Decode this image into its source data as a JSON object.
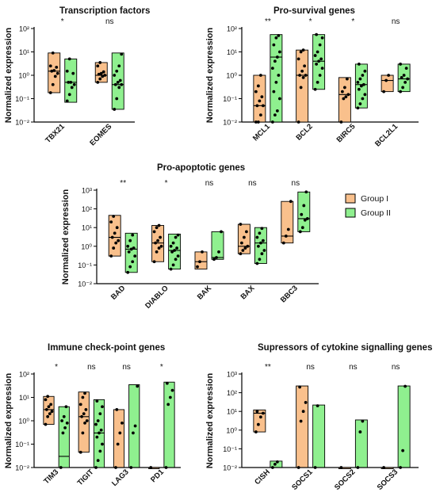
{
  "colors": {
    "group1": "#f9c08c",
    "group2": "#8ff08f",
    "stroke": "#000000",
    "background": "#ffffff"
  },
  "legend": {
    "items": [
      "Group I",
      "Group II"
    ],
    "placement": "right of Pro-apoptotic genes panel"
  },
  "chart_data": [
    {
      "type": "box",
      "title": "Transcription factors",
      "ylabel": "Normalized expression",
      "yscale": "log",
      "ylim": [
        0.01,
        100
      ],
      "categories": [
        "TBX21",
        "EOMES"
      ],
      "significance": [
        "*",
        "ns"
      ],
      "series": [
        {
          "name": "Group I",
          "values": [
            {
              "min": 0.18,
              "max": 9,
              "median": 1.5,
              "points": [
                0.18,
                0.4,
                0.9,
                1.2,
                1.5,
                1.6,
                2.2,
                2.5,
                9
              ]
            },
            {
              "min": 0.5,
              "max": 3.5,
              "median": 1.0,
              "points": [
                0.5,
                0.7,
                0.9,
                1.0,
                1.1,
                1.2,
                1.4,
                2.5,
                3.5
              ]
            }
          ]
        },
        {
          "name": "Group II",
          "values": [
            {
              "min": 0.07,
              "max": 5,
              "median": 0.5,
              "points": [
                0.08,
                0.15,
                0.3,
                0.4,
                0.5,
                0.5,
                1.2,
                1.5,
                5
              ]
            },
            {
              "min": 0.035,
              "max": 9,
              "median": 0.4,
              "points": [
                0.035,
                0.1,
                0.3,
                0.4,
                0.4,
                0.5,
                0.6,
                1.0,
                1.5,
                2.5,
                8
              ]
            }
          ]
        }
      ]
    },
    {
      "type": "box",
      "title": "Pro-survival genes",
      "ylabel": "Normalized expression",
      "yscale": "log",
      "ylim": [
        0.01,
        100
      ],
      "categories": [
        "MCL1",
        "BCL2",
        "BIRC5",
        "BCL2L1"
      ],
      "significance": [
        "**",
        "*",
        "*",
        "ns"
      ],
      "series": [
        {
          "name": "Group I",
          "values": [
            {
              "min": 0.01,
              "max": 1,
              "median": 0.05,
              "points": [
                0.01,
                0.01,
                0.02,
                0.05,
                0.05,
                0.08,
                0.12,
                0.2,
                0.35,
                1
              ]
            },
            {
              "min": 0.01,
              "max": 12,
              "median": 1,
              "points": [
                0.01,
                0.3,
                0.8,
                1,
                1,
                1.5,
                2.5,
                5,
                10,
                12
              ]
            },
            {
              "min": 0.01,
              "max": 0.8,
              "median": 0.15,
              "points": [
                0.01,
                0.1,
                0.12,
                0.15,
                0.2,
                0.3,
                0.7
              ]
            },
            {
              "min": 0.2,
              "max": 1,
              "median": 0.6,
              "points": [
                0.2,
                0.6,
                1
              ]
            }
          ]
        },
        {
          "name": "Group II",
          "values": [
            {
              "min": 0.01,
              "max": 55,
              "median": 6,
              "points": [
                0.01,
                0.02,
                0.03,
                0.1,
                0.2,
                0.5,
                1,
                2,
                4,
                6,
                10,
                20,
                40,
                50
              ]
            },
            {
              "min": 0.25,
              "max": 55,
              "median": 4,
              "points": [
                0.25,
                0.5,
                1,
                2,
                3,
                4,
                5,
                7,
                10,
                20,
                40,
                55
              ]
            },
            {
              "min": 0.04,
              "max": 3,
              "median": 0.4,
              "points": [
                0.04,
                0.06,
                0.1,
                0.15,
                0.25,
                0.35,
                0.4,
                0.5,
                0.7,
                1,
                1.5,
                3
              ]
            },
            {
              "min": 0.2,
              "max": 3,
              "median": 0.7,
              "points": [
                0.2,
                0.3,
                0.5,
                0.7,
                0.8,
                1,
                2,
                3
              ]
            }
          ]
        }
      ]
    },
    {
      "type": "box",
      "title": "Pro-apoptotic genes",
      "ylabel": "Normalized expression",
      "yscale": "log",
      "ylim": [
        0.01,
        1000
      ],
      "categories": [
        "BAD",
        "DIABLO",
        "BAK",
        "BAX",
        "BBC3"
      ],
      "significance": [
        "**",
        "*",
        "ns",
        "ns",
        "ns"
      ],
      "series": [
        {
          "name": "Group I",
          "values": [
            {
              "min": 0.3,
              "max": 45,
              "median": 3,
              "points": [
                0.3,
                0.8,
                1.5,
                2,
                3,
                5,
                10,
                20,
                40
              ]
            },
            {
              "min": 0.15,
              "max": 13,
              "median": 1.5,
              "points": [
                0.15,
                0.5,
                0.8,
                1,
                1.5,
                2,
                3,
                6,
                10,
                13
              ]
            },
            {
              "min": 0.06,
              "max": 0.5,
              "median": 0.15,
              "points": [
                0.08,
                0.15,
                0.5
              ]
            },
            {
              "min": 0.4,
              "max": 15,
              "median": 1,
              "points": [
                0.4,
                0.6,
                0.8,
                1,
                1.5,
                3,
                6,
                15
              ]
            },
            {
              "min": 1.5,
              "max": 250,
              "median": 3.5,
              "points": [
                1.5,
                3.5,
                8,
                250
              ]
            }
          ]
        },
        {
          "name": "Group II",
          "values": [
            {
              "min": 0.04,
              "max": 5,
              "median": 0.7,
              "points": [
                0.04,
                0.08,
                0.15,
                0.3,
                0.5,
                0.7,
                0.8,
                1,
                2,
                4
              ]
            },
            {
              "min": 0.06,
              "max": 4.5,
              "median": 0.6,
              "points": [
                0.06,
                0.1,
                0.2,
                0.3,
                0.5,
                0.6,
                0.8,
                1,
                1.5,
                3,
                4
              ]
            },
            {
              "min": 0.2,
              "max": 6,
              "median": 0.25,
              "points": [
                0.2,
                0.25,
                0.5,
                6
              ]
            },
            {
              "min": 0.12,
              "max": 10,
              "median": 1.5,
              "points": [
                0.12,
                0.2,
                0.4,
                0.6,
                1,
                1.5,
                2,
                3,
                5,
                9
              ]
            },
            {
              "min": 6,
              "max": 800,
              "median": 30,
              "points": [
                6,
                10,
                25,
                30,
                50,
                150,
                800
              ]
            }
          ]
        }
      ]
    },
    {
      "type": "box",
      "title": "Immune check-point genes",
      "ylabel": "Normalized expression",
      "yscale": "log",
      "ylim": [
        0.01,
        100
      ],
      "categories": [
        "TIM3",
        "TIGIT",
        "LAG3",
        "PD1"
      ],
      "significance": [
        "*",
        "ns",
        "ns",
        "*"
      ],
      "series": [
        {
          "name": "Group I",
          "values": [
            {
              "min": 0.7,
              "max": 11,
              "median": 3,
              "points": [
                0.7,
                1.5,
                2,
                2.5,
                3,
                4,
                5,
                8,
                11
              ]
            },
            {
              "min": 0.045,
              "max": 17,
              "median": 1.5,
              "points": [
                0.045,
                0.3,
                0.8,
                1,
                1.5,
                2,
                3,
                5,
                10,
                15
              ]
            },
            {
              "min": 0.01,
              "max": 3,
              "median": 0.01,
              "points": [
                0.01,
                0.1,
                0.3,
                0.8,
                3
              ]
            },
            {
              "min": 0.01,
              "max": 0.01,
              "median": 0.01,
              "points": [
                0.01
              ]
            }
          ]
        },
        {
          "name": "Group II",
          "values": [
            {
              "min": 0.01,
              "max": 4,
              "median": 0.03,
              "points": [
                0.01,
                0.3,
                0.5,
                0.8,
                1,
                1.5,
                4
              ]
            },
            {
              "min": 0.01,
              "max": 8,
              "median": 0.3,
              "points": [
                0.01,
                0.02,
                0.05,
                0.1,
                0.2,
                0.3,
                0.4,
                0.7,
                1,
                2,
                4,
                7
              ]
            },
            {
              "min": 0.01,
              "max": 35,
              "median": 0.01,
              "points": [
                0.01,
                0.3,
                0.6,
                30
              ]
            },
            {
              "min": 0.01,
              "max": 45,
              "median": 0.01,
              "points": [
                0.01,
                5,
                10,
                20,
                40
              ]
            }
          ]
        }
      ]
    },
    {
      "type": "box",
      "title": "Supressors of cytokine signalling genes",
      "ylabel": "Normalized expression",
      "yscale": "log",
      "ylim": [
        0.01,
        1000
      ],
      "categories": [
        "CISH",
        "SOCS1",
        "SOCS2",
        "SOCS3"
      ],
      "significance": [
        "**",
        "ns",
        "ns",
        "ns"
      ],
      "series": [
        {
          "name": "Group I",
          "values": [
            {
              "min": 0.8,
              "max": 12,
              "median": 8,
              "points": [
                0.8,
                2,
                5,
                8,
                10
              ]
            },
            {
              "min": 0.01,
              "max": 230,
              "median": 0.01,
              "points": [
                0.01,
                3,
                10,
                30,
                200
              ]
            },
            {
              "min": 0.01,
              "max": 0.01,
              "median": 0.01,
              "points": [
                0.01
              ]
            },
            {
              "min": 0.01,
              "max": 0.01,
              "median": 0.01,
              "points": [
                0.01
              ]
            }
          ]
        },
        {
          "name": "Group II",
          "values": [
            {
              "min": 0.01,
              "max": 0.022,
              "median": 0.01,
              "points": [
                0.01,
                0.015,
                0.02
              ]
            },
            {
              "min": 0.01,
              "max": 22,
              "median": 0.01,
              "points": [
                0.01,
                20
              ]
            },
            {
              "min": 0.01,
              "max": 3.5,
              "median": 0.01,
              "points": [
                0.01,
                0.8,
                3
              ]
            },
            {
              "min": 0.01,
              "max": 230,
              "median": 0.01,
              "points": [
                0.01,
                0.08,
                220
              ]
            }
          ]
        }
      ]
    }
  ]
}
